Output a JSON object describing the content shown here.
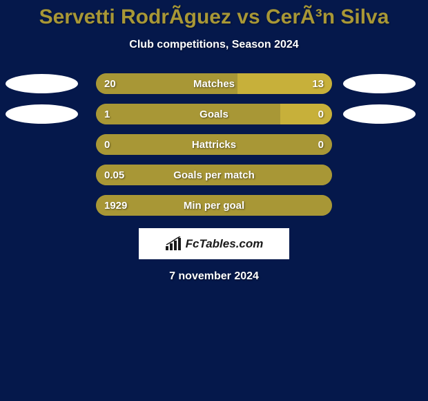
{
  "title": "Servetti RodrÃ­guez vs CerÃ³n Silva",
  "subtitle": "Club competitions, Season 2024",
  "date": "7 november 2024",
  "logo": {
    "text": "FcTables.com"
  },
  "colors": {
    "background": "#05184b",
    "accent": "#a89736",
    "accent_light": "#c7b03a",
    "text": "#ffffff",
    "ellipse": "#ffffff"
  },
  "stats": [
    {
      "name": "Matches",
      "left_value": "20",
      "right_value": "13",
      "left_pct": 60,
      "right_pct": 40,
      "show_ellipses": true,
      "left_color": "#a89736",
      "right_color": "#c7b03a"
    },
    {
      "name": "Goals",
      "left_value": "1",
      "right_value": "0",
      "left_pct": 78,
      "right_pct": 22,
      "show_ellipses": true,
      "left_color": "#a89736",
      "right_color": "#c7b03a"
    },
    {
      "name": "Hattricks",
      "left_value": "0",
      "right_value": "0",
      "left_pct": 100,
      "right_pct": 0,
      "show_ellipses": false,
      "left_color": "#a89736",
      "right_color": "#a89736"
    },
    {
      "name": "Goals per match",
      "left_value": "0.05",
      "right_value": "",
      "left_pct": 100,
      "right_pct": 0,
      "show_ellipses": false,
      "left_color": "#a89736",
      "right_color": "#a89736"
    },
    {
      "name": "Min per goal",
      "left_value": "1929",
      "right_value": "",
      "left_pct": 100,
      "right_pct": 0,
      "show_ellipses": false,
      "left_color": "#a89736",
      "right_color": "#a89736"
    }
  ]
}
